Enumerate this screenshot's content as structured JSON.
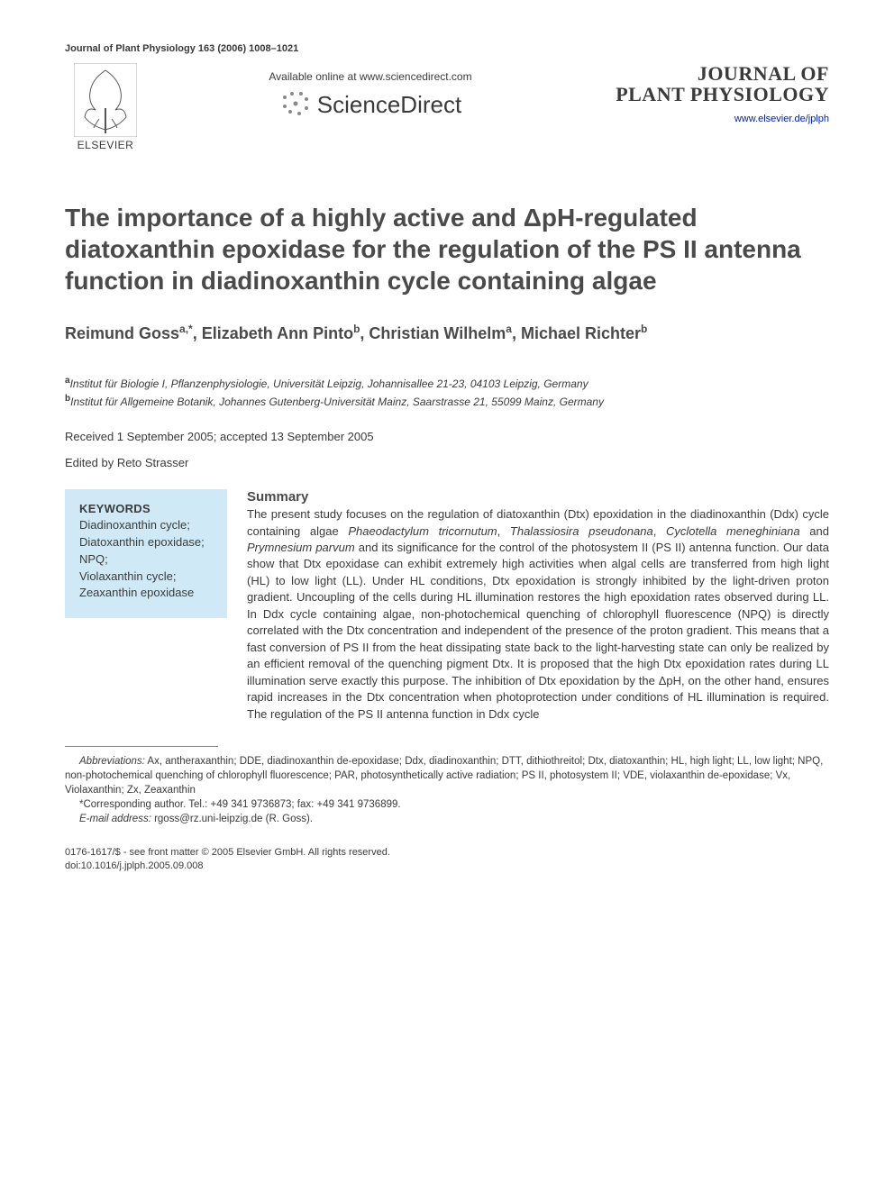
{
  "running_head": "Journal of Plant Physiology 163 (2006) 1008–1021",
  "header": {
    "elsevier_label": "ELSEVIER",
    "available_text": "Available online at www.sciencedirect.com",
    "sciencedirect_text": "ScienceDirect",
    "journal_name_line1": "JOURNAL OF",
    "journal_name_line2": "PLANT PHYSIOLOGY",
    "journal_link": "www.elsevier.de/jplph"
  },
  "title": "The importance of a highly active and ΔpH-regulated diatoxanthin epoxidase for the regulation of the PS II antenna function in diadinoxanthin cycle containing algae",
  "authors": {
    "a1_name": "Reimund Goss",
    "a1_aff": "a,",
    "a1_corr": "*",
    "a2_name": "Elizabeth Ann Pinto",
    "a2_aff": "b",
    "a3_name": "Christian Wilhelm",
    "a3_aff": "a",
    "a4_name": "Michael Richter",
    "a4_aff": "b"
  },
  "affiliations": {
    "a": "Institut für Biologie I, Pflanzenphysiologie, Universität Leipzig, Johannisallee 21-23, 04103 Leipzig, Germany",
    "b": "Institut für Allgemeine Botanik, Johannes Gutenberg-Universität Mainz, Saarstrasse 21, 55099 Mainz, Germany"
  },
  "dates": "Received 1 September 2005; accepted 13 September 2005",
  "edited_by": "Edited by Reto Strasser",
  "keywords": {
    "heading": "KEYWORDS",
    "items": "Diadinoxanthin cycle;\nDiatoxanthin epoxidase;\nNPQ;\nViolaxanthin cycle;\nZeaxanthin epoxidase"
  },
  "summary": {
    "heading": "Summary",
    "body_html": "The present study focuses on the regulation of diatoxanthin (Dtx) epoxidation in the diadinoxanthin (Ddx) cycle containing algae <em>Phaeodactylum tricornutum</em>, <em>Thalassiosira pseudonana</em>, <em>Cyclotella meneghiniana</em> and <em>Prymnesium parvum</em> and its significance for the control of the photosystem II (PS II) antenna function. Our data show that Dtx epoxidase can exhibit extremely high activities when algal cells are transferred from high light (HL) to low light (LL). Under HL conditions, Dtx epoxidation is strongly inhibited by the light-driven proton gradient. Uncoupling of the cells during HL illumination restores the high epoxidation rates observed during LL. In Ddx cycle containing algae, non-photochemical quenching of chlorophyll fluorescence (NPQ) is directly correlated with the Dtx concentration and independent of the presence of the proton gradient. This means that a fast conversion of PS II from the heat dissipating state back to the light-harvesting state can only be realized by an efficient removal of the quenching pigment Dtx. It is proposed that the high Dtx epoxidation rates during LL illumination serve exactly this purpose. The inhibition of Dtx epoxidation by the ΔpH, on the other hand, ensures rapid increases in the Dtx concentration when photoprotection under conditions of HL illumination is required. The regulation of the PS II antenna function in Ddx cycle"
  },
  "footnotes": {
    "abbrev_label": "Abbreviations:",
    "abbrev_text": " Ax, antheraxanthin; DDE, diadinoxanthin de-epoxidase; Ddx, diadinoxanthin; DTT, dithiothreitol; Dtx, diatoxanthin; HL, high light; LL, low light; NPQ, non-photochemical quenching of chlorophyll fluorescence; PAR, photosynthetically active radiation; PS II, photosystem II; VDE, violaxanthin de-epoxidase; Vx, Violaxanthin; Zx, Zeaxanthin",
    "corr_label": "*Corresponding author. ",
    "corr_text": "Tel.: +49 341 9736873; fax: +49 341 9736899.",
    "email_label": "E-mail address:",
    "email_value": " rgoss@rz.uni-leipzig.de (R. Goss)."
  },
  "copyright": {
    "line1": "0176-1617/$ - see front matter © 2005 Elsevier GmbH. All rights reserved.",
    "line2": "doi:10.1016/j.jplph.2005.09.008"
  },
  "colors": {
    "keywords_bg": "#cfeaf6",
    "link_color": "#0020c0",
    "text_color": "#3a3a3a",
    "heading_color": "#4a4a4a"
  }
}
